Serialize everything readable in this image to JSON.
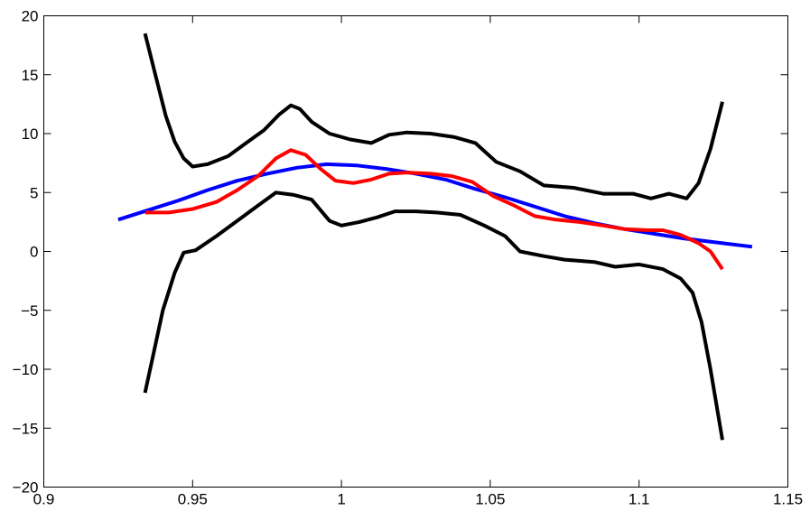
{
  "chart_data": {
    "type": "line",
    "title": "",
    "xlabel": "",
    "ylabel": "",
    "xlim": [
      0.9,
      1.15
    ],
    "ylim": [
      -20,
      20
    ],
    "grid": false,
    "legend": "none",
    "x_ticks": [
      "0.9",
      "0.95",
      "1",
      "1.05",
      "1.1",
      "1.15"
    ],
    "y_ticks": [
      "20",
      "15",
      "10",
      "5",
      "0",
      "−5",
      "−10",
      "−15",
      "−20"
    ],
    "series": [
      {
        "color": "#0000ff",
        "points": [
          [
            0.925,
            2.7
          ],
          [
            0.935,
            3.5
          ],
          [
            0.945,
            4.3
          ],
          [
            0.955,
            5.2
          ],
          [
            0.965,
            6.0
          ],
          [
            0.975,
            6.6
          ],
          [
            0.985,
            7.1
          ],
          [
            0.995,
            7.4
          ],
          [
            1.005,
            7.3
          ],
          [
            1.015,
            7.0
          ],
          [
            1.025,
            6.6
          ],
          [
            1.035,
            6.1
          ],
          [
            1.045,
            5.3
          ],
          [
            1.055,
            4.6
          ],
          [
            1.065,
            3.8
          ],
          [
            1.075,
            3.0
          ],
          [
            1.085,
            2.4
          ],
          [
            1.095,
            1.9
          ],
          [
            1.105,
            1.5
          ],
          [
            1.115,
            1.1
          ],
          [
            1.125,
            0.8
          ],
          [
            1.138,
            0.4
          ]
        ]
      },
      {
        "color": "#ff0000",
        "points": [
          [
            0.934,
            3.3
          ],
          [
            0.942,
            3.3
          ],
          [
            0.95,
            3.6
          ],
          [
            0.958,
            4.2
          ],
          [
            0.965,
            5.2
          ],
          [
            0.972,
            6.4
          ],
          [
            0.978,
            7.9
          ],
          [
            0.983,
            8.6
          ],
          [
            0.988,
            8.2
          ],
          [
            0.993,
            7.0
          ],
          [
            0.998,
            6.0
          ],
          [
            1.004,
            5.8
          ],
          [
            1.01,
            6.1
          ],
          [
            1.016,
            6.6
          ],
          [
            1.022,
            6.7
          ],
          [
            1.03,
            6.6
          ],
          [
            1.037,
            6.4
          ],
          [
            1.044,
            5.9
          ],
          [
            1.051,
            4.7
          ],
          [
            1.058,
            3.9
          ],
          [
            1.065,
            3.0
          ],
          [
            1.072,
            2.7
          ],
          [
            1.08,
            2.5
          ],
          [
            1.088,
            2.2
          ],
          [
            1.095,
            1.9
          ],
          [
            1.103,
            1.8
          ],
          [
            1.108,
            1.8
          ],
          [
            1.114,
            1.4
          ],
          [
            1.12,
            0.7
          ],
          [
            1.124,
            0.0
          ],
          [
            1.128,
            -1.5
          ]
        ]
      },
      {
        "color": "#000000",
        "points": [
          [
            0.934,
            18.5
          ],
          [
            0.938,
            14.5
          ],
          [
            0.941,
            11.5
          ],
          [
            0.944,
            9.3
          ],
          [
            0.947,
            7.9
          ],
          [
            0.95,
            7.2
          ],
          [
            0.955,
            7.4
          ],
          [
            0.962,
            8.1
          ],
          [
            0.968,
            9.2
          ],
          [
            0.974,
            10.3
          ],
          [
            0.979,
            11.6
          ],
          [
            0.983,
            12.4
          ],
          [
            0.986,
            12.1
          ],
          [
            0.99,
            11.0
          ],
          [
            0.996,
            10.0
          ],
          [
            1.003,
            9.5
          ],
          [
            1.01,
            9.2
          ],
          [
            1.016,
            9.9
          ],
          [
            1.022,
            10.1
          ],
          [
            1.03,
            10.0
          ],
          [
            1.038,
            9.7
          ],
          [
            1.045,
            9.2
          ],
          [
            1.052,
            7.6
          ],
          [
            1.06,
            6.8
          ],
          [
            1.068,
            5.6
          ],
          [
            1.078,
            5.4
          ],
          [
            1.088,
            4.9
          ],
          [
            1.098,
            4.9
          ],
          [
            1.104,
            4.5
          ],
          [
            1.11,
            4.9
          ],
          [
            1.116,
            4.5
          ],
          [
            1.12,
            5.8
          ],
          [
            1.124,
            8.7
          ],
          [
            1.128,
            12.7
          ]
        ]
      },
      {
        "color": "#000000",
        "points": [
          [
            0.934,
            -12.0
          ],
          [
            0.937,
            -8.5
          ],
          [
            0.94,
            -5.0
          ],
          [
            0.944,
            -1.8
          ],
          [
            0.947,
            -0.1
          ],
          [
            0.951,
            0.1
          ],
          [
            0.958,
            1.3
          ],
          [
            0.965,
            2.6
          ],
          [
            0.972,
            3.9
          ],
          [
            0.978,
            5.0
          ],
          [
            0.984,
            4.8
          ],
          [
            0.99,
            4.4
          ],
          [
            0.996,
            2.6
          ],
          [
            1.0,
            2.2
          ],
          [
            1.006,
            2.5
          ],
          [
            1.012,
            2.9
          ],
          [
            1.018,
            3.4
          ],
          [
            1.025,
            3.4
          ],
          [
            1.032,
            3.3
          ],
          [
            1.04,
            3.1
          ],
          [
            1.048,
            2.2
          ],
          [
            1.055,
            1.3
          ],
          [
            1.06,
            0.0
          ],
          [
            1.068,
            -0.4
          ],
          [
            1.075,
            -0.7
          ],
          [
            1.085,
            -0.9
          ],
          [
            1.092,
            -1.3
          ],
          [
            1.1,
            -1.1
          ],
          [
            1.108,
            -1.5
          ],
          [
            1.114,
            -2.3
          ],
          [
            1.118,
            -3.5
          ],
          [
            1.121,
            -6.0
          ],
          [
            1.124,
            -10.0
          ],
          [
            1.128,
            -16.0
          ]
        ]
      }
    ]
  }
}
